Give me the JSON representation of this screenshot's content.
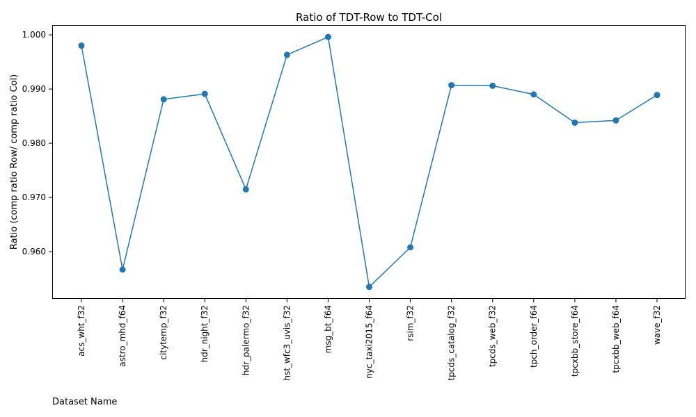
{
  "chart_data": {
    "type": "line",
    "title": "Ratio of TDT-Row to TDT-Col",
    "xlabel": "Dataset Name",
    "ylabel": "Ratio (comp ratio Row/ comp ratio Col)",
    "categories": [
      "acs_wht_f32",
      "astro_mhd_f64",
      "citytemp_f32",
      "hdr_night_f32",
      "hdr_palermo_f32",
      "hst_wfc3_uvis_f32",
      "msg_bt_f64",
      "nyc_taxi2015_f64",
      "rsim_f32",
      "tpcds_catalog_f32",
      "tpcds_web_f32",
      "tpch_order_f64",
      "tpcxbb_store_f64",
      "tpcxbb_web_f64",
      "wave_f32"
    ],
    "values": [
      0.998,
      0.9567,
      0.9881,
      0.9891,
      0.9715,
      0.9963,
      0.9996,
      0.9535,
      0.9608,
      0.9907,
      0.9906,
      0.989,
      0.9838,
      0.9842,
      0.9889
    ],
    "yticks": [
      "0.960",
      "0.970",
      "0.980",
      "0.990",
      "1.000"
    ],
    "ylim": [
      0.9513,
      1.0018
    ],
    "grid": false,
    "marker": "circle",
    "line_color": "#1f77b4"
  }
}
